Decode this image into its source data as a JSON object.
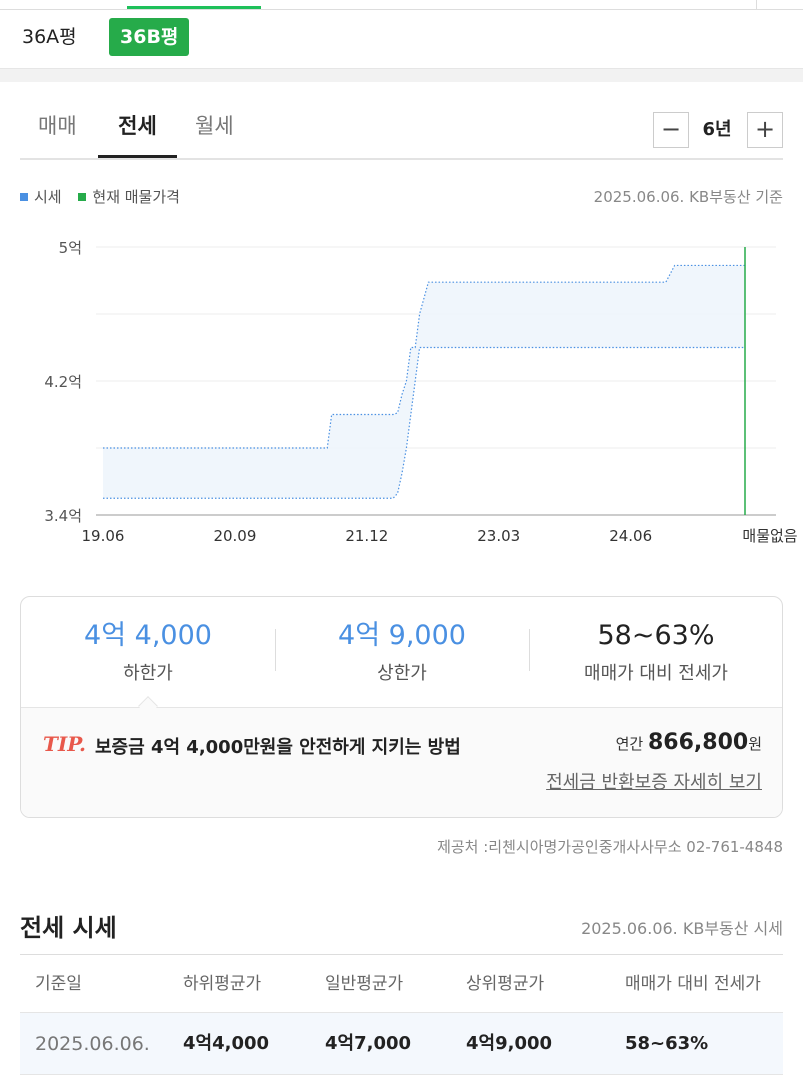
{
  "size_tabs": [
    {
      "label": "36A평",
      "active": false
    },
    {
      "label": "36B평",
      "active": true
    }
  ],
  "deal_tabs": [
    {
      "label": "매매",
      "active": false
    },
    {
      "label": "전세",
      "active": true
    },
    {
      "label": "월세",
      "active": false
    }
  ],
  "period": {
    "value": "6년",
    "minus_icon": "minus-icon",
    "plus_icon": "plus-icon"
  },
  "legend": {
    "market_label": "시세",
    "market_color": "#4a90e2",
    "listing_label": "현재 매물가격",
    "listing_color": "#26ab4a"
  },
  "chart_source": "2025.06.06. KB부동산 기준",
  "chart_data": {
    "type": "area",
    "y_tick_labels": [
      "5억",
      "4.2억",
      "3.4억"
    ],
    "y_tick_values": [
      5.0,
      4.2,
      3.4
    ],
    "ylim": [
      3.4,
      5.0
    ],
    "x_tick_labels": [
      "19.06",
      "20.09",
      "21.12",
      "23.03",
      "24.06"
    ],
    "x_tick_months": [
      0,
      15,
      30,
      45,
      60
    ],
    "x_end_label": "매물없음",
    "grid": true,
    "series": [
      {
        "months": [
          0,
          25.5,
          26,
          33,
          33.5,
          34,
          34.5,
          35,
          35.5,
          36,
          37,
          64,
          65,
          73
        ],
        "upper": [
          3.8,
          3.8,
          4.0,
          4.0,
          4.01,
          4.12,
          4.2,
          4.4,
          4.4,
          4.6,
          4.79,
          4.79,
          4.89,
          4.89
        ],
        "lower": [
          3.5,
          3.5,
          3.5,
          3.5,
          3.53,
          3.65,
          3.8,
          4.0,
          4.2,
          4.4,
          4.4,
          4.4,
          4.4,
          4.4
        ]
      }
    ]
  },
  "summary": {
    "low_value": "4억 4,000",
    "low_label": "하한가",
    "high_value": "4억 9,000",
    "high_label": "상한가",
    "ratio_value": "58~63%",
    "ratio_label": "매매가 대비 전세가"
  },
  "tip": {
    "label": "TIP.",
    "text": "보증금 4억 4,000만원을 안전하게 지키는 방법",
    "annual_prefix": "연간",
    "annual_amount": "866,800",
    "annual_unit": "원",
    "link": "전세금 반환보증 자세히 보기"
  },
  "provider": "제공처 :리첸시아명가공인중개사사무소 02-761-4848",
  "price_section": {
    "title": "전세 시세",
    "source": "2025.06.06. KB부동산 시세",
    "headers": [
      "기준일",
      "하위평균가",
      "일반평균가",
      "상위평균가",
      "매매가 대비 전세가"
    ],
    "rows": [
      [
        "2025.06.06.",
        "4억4,000",
        "4억7,000",
        "4억9,000",
        "58~63%"
      ]
    ]
  }
}
